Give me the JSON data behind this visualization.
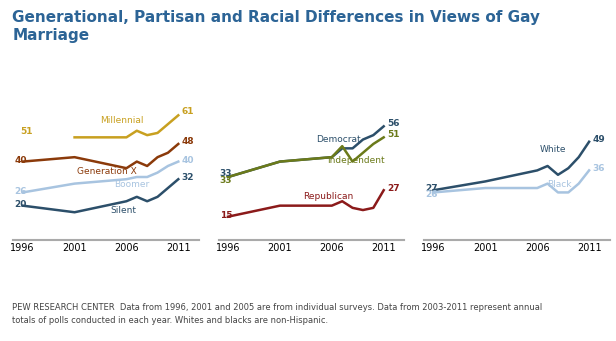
{
  "title": "Generational, Partisan and Racial Differences in Views of Gay Marriage",
  "footer": "PEW RESEARCH CENTER  Data from 1996, 2001 and 2005 are from individual surveys. Data from 2003-2011 represent annual\ntotals of polls conducted in each year. Whites and blacks are non-Hispanic.",
  "years": [
    1996,
    1997,
    1998,
    1999,
    2000,
    2001,
    2002,
    2003,
    2004,
    2005,
    2006,
    2007,
    2008,
    2009,
    2010,
    2011
  ],
  "panel1": {
    "Millennial": {
      "color": "#C8A020",
      "data": [
        null,
        null,
        null,
        null,
        null,
        51,
        null,
        null,
        null,
        null,
        51,
        54,
        52,
        53,
        57,
        61
      ]
    },
    "Generation X": {
      "color": "#8B3A0A",
      "data": [
        40,
        null,
        null,
        null,
        null,
        42,
        null,
        null,
        null,
        null,
        37,
        40,
        38,
        42,
        44,
        48
      ]
    },
    "Boomer": {
      "color": "#A8C4E0",
      "data": [
        26,
        null,
        null,
        null,
        null,
        30,
        null,
        null,
        null,
        null,
        32,
        33,
        33,
        35,
        38,
        40
      ]
    },
    "Silent": {
      "color": "#2C4F6A",
      "data": [
        20,
        null,
        null,
        null,
        null,
        17,
        null,
        null,
        null,
        null,
        22,
        24,
        22,
        24,
        28,
        32
      ]
    }
  },
  "panel2": {
    "Democrat": {
      "color": "#2C4F6A",
      "data": [
        33,
        null,
        null,
        null,
        null,
        40,
        null,
        null,
        null,
        null,
        42,
        46,
        46,
        50,
        52,
        56
      ]
    },
    "Independent": {
      "color": "#6B7A1A",
      "data": [
        33,
        null,
        null,
        null,
        null,
        40,
        null,
        null,
        null,
        null,
        42,
        47,
        40,
        44,
        48,
        51
      ]
    },
    "Republican": {
      "color": "#8B1A1A",
      "data": [
        15,
        null,
        null,
        null,
        null,
        20,
        null,
        null,
        null,
        null,
        20,
        22,
        19,
        18,
        19,
        27
      ]
    }
  },
  "panel3": {
    "White": {
      "color": "#2C4F6A",
      "data": [
        27,
        null,
        null,
        null,
        null,
        31,
        null,
        null,
        null,
        null,
        36,
        38,
        34,
        37,
        42,
        49
      ]
    },
    "Black": {
      "color": "#A8C4E0",
      "data": [
        26,
        null,
        null,
        null,
        null,
        28,
        null,
        null,
        null,
        null,
        28,
        30,
        26,
        26,
        30,
        36
      ]
    }
  },
  "bg_color": "#FFFFFF",
  "title_color": "#2C6496",
  "x_ticks": [
    1996,
    2001,
    2006,
    2011
  ],
  "ylim": [
    5,
    70
  ]
}
